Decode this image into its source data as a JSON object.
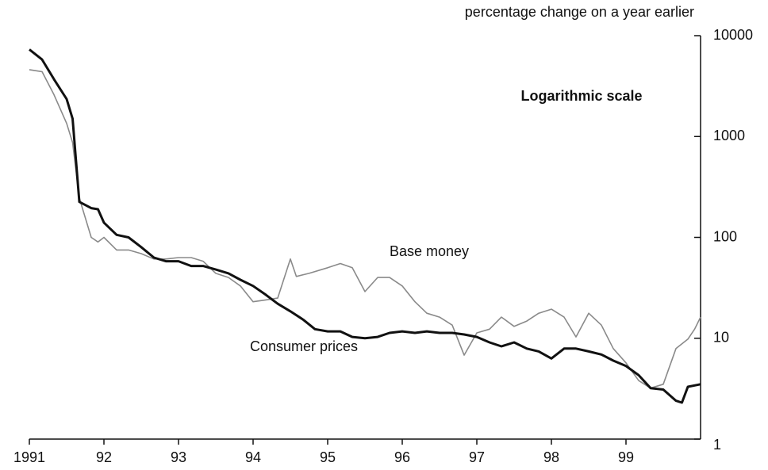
{
  "chart_data": {
    "type": "line",
    "y_label": "percentage change on a year earlier",
    "note": "Logarithmic scale",
    "annotations": [
      "Base money",
      "Consumer prices"
    ],
    "yscale": "log",
    "xlim": [
      1991,
      2000
    ],
    "xticks": [
      1991,
      {
        "value": 1992,
        "label": "92"
      },
      {
        "value": 1993,
        "label": "93"
      },
      {
        "value": 1994,
        "label": "94"
      },
      {
        "value": 1995,
        "label": "95"
      },
      {
        "value": 1996,
        "label": "96"
      },
      {
        "value": 1997,
        "label": "97"
      },
      {
        "value": 1998,
        "label": "98"
      },
      {
        "value": 1999,
        "label": "99"
      }
    ],
    "ylim": [
      1,
      10000
    ],
    "yticks": [
      1,
      10,
      100,
      1000,
      10000
    ],
    "series": [
      {
        "name": "Base money",
        "color": "#8a8a8a",
        "width": 1.6,
        "x": [
          1991.0,
          1991.17,
          1991.33,
          1991.5,
          1991.58,
          1991.67,
          1991.83,
          1991.92,
          1992.0,
          1992.17,
          1992.33,
          1992.5,
          1992.67,
          1992.83,
          1993.0,
          1993.17,
          1993.33,
          1993.5,
          1993.67,
          1993.83,
          1994.0,
          1994.17,
          1994.33,
          1994.5,
          1994.58,
          1994.75,
          1995.0,
          1995.17,
          1995.33,
          1995.5,
          1995.67,
          1995.83,
          1996.0,
          1996.17,
          1996.33,
          1996.5,
          1996.67,
          1996.83,
          1997.0,
          1997.17,
          1997.33,
          1997.5,
          1997.67,
          1997.83,
          1998.0,
          1998.17,
          1998.33,
          1998.5,
          1998.67,
          1998.83,
          1999.0,
          1999.17,
          1999.33,
          1999.5,
          1999.67,
          1999.83,
          1999.92,
          2000.0
        ],
        "values": [
          4600,
          4400,
          2600,
          1350,
          870,
          245,
          100,
          90,
          100,
          75,
          75,
          69,
          61,
          61,
          63,
          63,
          58,
          44,
          40,
          33,
          23,
          24,
          25,
          61,
          41,
          44,
          50,
          55,
          50,
          29,
          40,
          40,
          33,
          23,
          17.7,
          16.2,
          13.5,
          6.8,
          11.3,
          12.3,
          16.2,
          13.1,
          14.8,
          17.7,
          19.4,
          16.2,
          10.3,
          17.7,
          13.5,
          7.9,
          5.7,
          3.8,
          3.2,
          3.5,
          7.9,
          9.8,
          12.3,
          16.2
        ]
      },
      {
        "name": "Consumer prices",
        "color": "#111111",
        "width": 3,
        "x": [
          1991.0,
          1991.17,
          1991.33,
          1991.5,
          1991.58,
          1991.67,
          1991.83,
          1991.92,
          1992.0,
          1992.17,
          1992.33,
          1992.5,
          1992.67,
          1992.83,
          1993.0,
          1993.17,
          1993.33,
          1993.5,
          1993.67,
          1993.83,
          1994.0,
          1994.17,
          1994.33,
          1994.5,
          1994.67,
          1994.83,
          1995.0,
          1995.17,
          1995.33,
          1995.5,
          1995.67,
          1995.83,
          1996.0,
          1996.17,
          1996.33,
          1996.5,
          1996.67,
          1996.83,
          1997.0,
          1997.17,
          1997.33,
          1997.5,
          1997.67,
          1997.83,
          1998.0,
          1998.17,
          1998.33,
          1998.5,
          1998.67,
          1998.83,
          1999.0,
          1999.17,
          1999.33,
          1999.5,
          1999.67,
          1999.75,
          1999.83,
          2000.0
        ],
        "values": [
          7300,
          5800,
          3700,
          2350,
          1500,
          225,
          195,
          190,
          140,
          106,
          100,
          80,
          63,
          58,
          58,
          52,
          52,
          48,
          44,
          38,
          33,
          27,
          22,
          18.5,
          15.3,
          12.3,
          11.7,
          11.7,
          10.3,
          10,
          10.3,
          11.3,
          11.7,
          11.3,
          11.7,
          11.3,
          11.3,
          10.9,
          10.3,
          9.1,
          8.3,
          9.1,
          7.9,
          7.4,
          6.3,
          7.9,
          7.9,
          7.4,
          6.9,
          6.0,
          5.3,
          4.3,
          3.2,
          3.1,
          2.4,
          2.3,
          3.3,
          3.5
        ]
      }
    ]
  }
}
